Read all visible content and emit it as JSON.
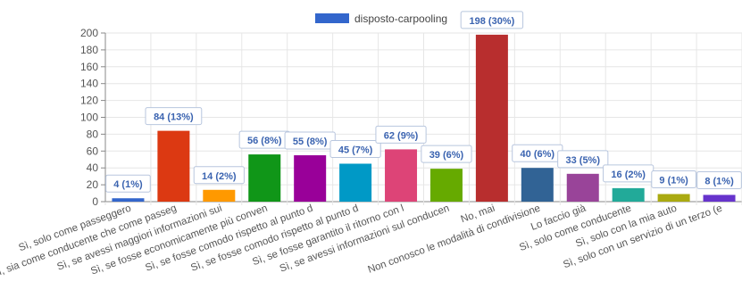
{
  "chart_data": {
    "type": "bar",
    "legend": {
      "label": "disposto-carpooling",
      "color": "#3366cc",
      "position": "top-center"
    },
    "ylim": [
      0,
      200
    ],
    "yticks": [
      0,
      20,
      40,
      60,
      80,
      100,
      120,
      140,
      160,
      180,
      200
    ],
    "grid": true,
    "categories": [
      "Sì, solo come passeggero",
      "Sì, sia come conducente che come passeg",
      "Sì, se avessi maggiori informazioni sui",
      "Sì, se fosse economicamente più conven",
      "Sì, se fosse comodo rispetto al punto d",
      "Sì, se fosse comodo rispetto al punto d",
      "Sì, se fosse garantito il ritorno con l",
      "Sì, se avessi informazioni sul conducen",
      "No, mai",
      "Non conosco le modalità di condivisione",
      "Lo faccio già",
      "Sì, solo come conducente",
      "Sì, solo con la mia auto",
      "Sì, solo con un servizio di un terzo (e"
    ],
    "values": [
      4,
      84,
      14,
      56,
      55,
      45,
      62,
      39,
      198,
      40,
      33,
      16,
      9,
      8
    ],
    "data_labels": [
      "4 (1%)",
      "84 (13%)",
      "14 (2%)",
      "56 (8%)",
      "55 (8%)",
      "45 (7%)",
      "62 (9%)",
      "39 (6%)",
      "198 (30%)",
      "40 (6%)",
      "33 (5%)",
      "16 (2%)",
      "9 (1%)",
      "8 (1%)"
    ],
    "colors": [
      "#3366cc",
      "#dc3912",
      "#ff9900",
      "#109618",
      "#990099",
      "#0099c6",
      "#dd4477",
      "#66aa00",
      "#b82e2e",
      "#316395",
      "#994499",
      "#22aa99",
      "#aaaa11",
      "#6633cc"
    ]
  }
}
